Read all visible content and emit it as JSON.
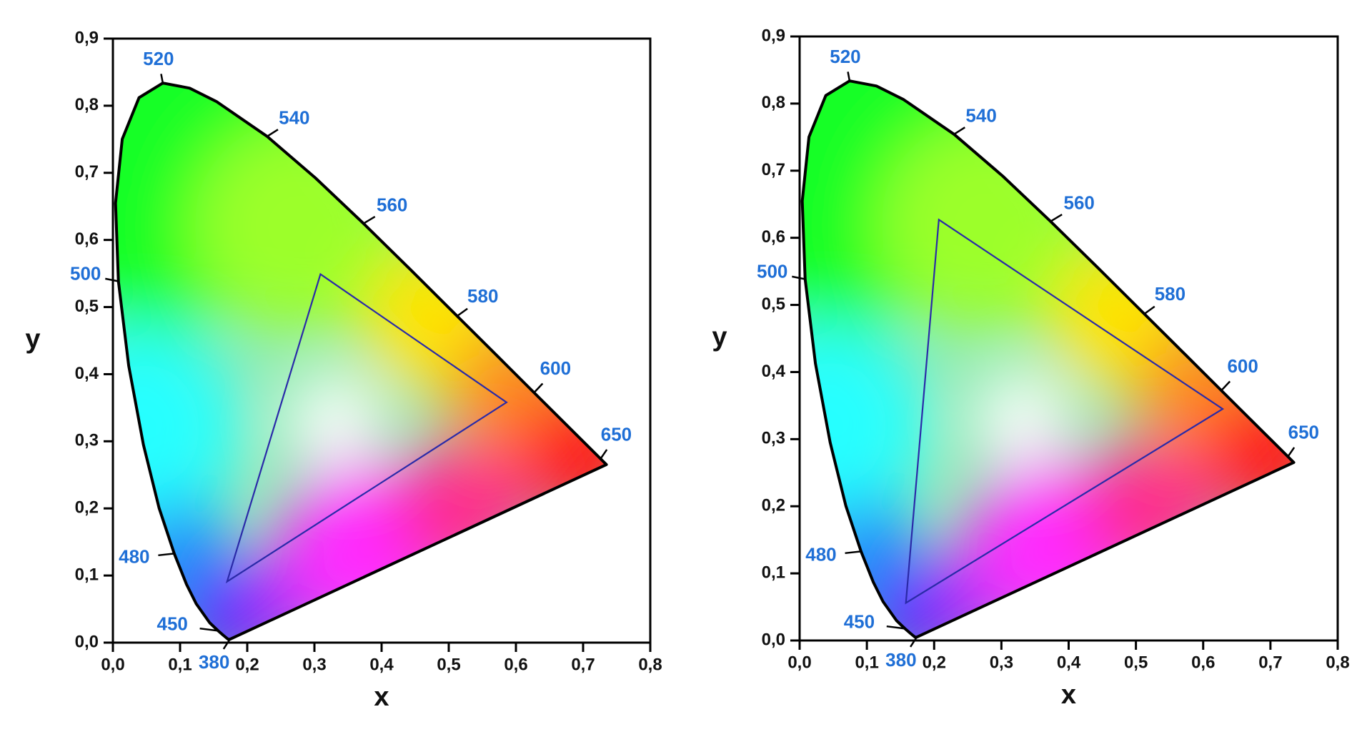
{
  "chart_data": [
    {
      "type": "chromaticity",
      "x_label": "x",
      "y_label": "y",
      "xlim": [
        0,
        0.8
      ],
      "ylim": [
        0,
        0.9
      ],
      "xticks": [
        {
          "value": 0,
          "label": "0,0"
        },
        {
          "value": 0.1,
          "label": "0,1"
        },
        {
          "value": 0.2,
          "label": "0,2"
        },
        {
          "value": 0.3,
          "label": "0,3"
        },
        {
          "value": 0.4,
          "label": "0,4"
        },
        {
          "value": 0.5,
          "label": "0,5"
        },
        {
          "value": 0.6,
          "label": "0,6"
        },
        {
          "value": 0.7,
          "label": "0,7"
        },
        {
          "value": 0.8,
          "label": "0,8"
        }
      ],
      "yticks": [
        {
          "value": 0,
          "label": "0,0"
        },
        {
          "value": 0.1,
          "label": "0,1"
        },
        {
          "value": 0.2,
          "label": "0,2"
        },
        {
          "value": 0.3,
          "label": "0,3"
        },
        {
          "value": 0.4,
          "label": "0,4"
        },
        {
          "value": 0.5,
          "label": "0,5"
        },
        {
          "value": 0.6,
          "label": "0,6"
        },
        {
          "value": 0.7,
          "label": "0,7"
        },
        {
          "value": 0.8,
          "label": "0,8"
        },
        {
          "value": 0.9,
          "label": "0,9"
        }
      ],
      "locus": {
        "color": "#000000",
        "x": [
          0.1741,
          0.1714,
          0.1644,
          0.1566,
          0.144,
          0.1241,
          0.1096,
          0.0913,
          0.0687,
          0.0454,
          0.0235,
          0.0082,
          0.0039,
          0.0139,
          0.0389,
          0.0743,
          0.1142,
          0.1547,
          0.2296,
          0.3016,
          0.3731,
          0.4441,
          0.5125,
          0.5752,
          0.627,
          0.6915,
          0.726,
          0.7347
        ],
        "y": [
          0.005,
          0.0051,
          0.0109,
          0.0177,
          0.0297,
          0.0578,
          0.0868,
          0.1327,
          0.2007,
          0.295,
          0.4127,
          0.5384,
          0.6548,
          0.7502,
          0.812,
          0.8338,
          0.8262,
          0.8059,
          0.7543,
          0.6923,
          0.6245,
          0.5547,
          0.4866,
          0.4242,
          0.3725,
          0.3083,
          0.274,
          0.2653
        ]
      },
      "wavelength_labels": {
        "color": "#1f6fd6",
        "labels": [
          380,
          450,
          480,
          500,
          520,
          540,
          560,
          580,
          600,
          650
        ],
        "x": [
          0.1741,
          0.1566,
          0.0913,
          0.0082,
          0.0743,
          0.2296,
          0.3731,
          0.5125,
          0.627,
          0.726
        ],
        "y": [
          0.005,
          0.0177,
          0.1327,
          0.5384,
          0.8338,
          0.7543,
          0.6245,
          0.4866,
          0.3725,
          0.274
        ]
      },
      "gamut": {
        "color": "#2a2aa8",
        "x": [
          0.309,
          0.586,
          0.17
        ],
        "y": [
          0.549,
          0.358,
          0.091
        ]
      }
    },
    {
      "type": "chromaticity",
      "x_label": "x",
      "y_label": "y",
      "xlim": [
        0,
        0.8
      ],
      "ylim": [
        0,
        0.9
      ],
      "xticks": [
        {
          "value": 0,
          "label": "0,0"
        },
        {
          "value": 0.1,
          "label": "0,1"
        },
        {
          "value": 0.2,
          "label": "0,2"
        },
        {
          "value": 0.3,
          "label": "0,3"
        },
        {
          "value": 0.4,
          "label": "0,4"
        },
        {
          "value": 0.5,
          "label": "0,5"
        },
        {
          "value": 0.6,
          "label": "0,6"
        },
        {
          "value": 0.7,
          "label": "0,7"
        },
        {
          "value": 0.8,
          "label": "0,8"
        }
      ],
      "yticks": [
        {
          "value": 0,
          "label": "0,0"
        },
        {
          "value": 0.1,
          "label": "0,1"
        },
        {
          "value": 0.2,
          "label": "0,2"
        },
        {
          "value": 0.3,
          "label": "0,3"
        },
        {
          "value": 0.4,
          "label": "0,4"
        },
        {
          "value": 0.5,
          "label": "0,5"
        },
        {
          "value": 0.6,
          "label": "0,6"
        },
        {
          "value": 0.7,
          "label": "0,7"
        },
        {
          "value": 0.8,
          "label": "0,8"
        },
        {
          "value": 0.9,
          "label": "0,9"
        }
      ],
      "locus": {
        "color": "#000000",
        "x": [
          0.1741,
          0.1714,
          0.1644,
          0.1566,
          0.144,
          0.1241,
          0.1096,
          0.0913,
          0.0687,
          0.0454,
          0.0235,
          0.0082,
          0.0039,
          0.0139,
          0.0389,
          0.0743,
          0.1142,
          0.1547,
          0.2296,
          0.3016,
          0.3731,
          0.4441,
          0.5125,
          0.5752,
          0.627,
          0.6915,
          0.726,
          0.7347
        ],
        "y": [
          0.005,
          0.0051,
          0.0109,
          0.0177,
          0.0297,
          0.0578,
          0.0868,
          0.1327,
          0.2007,
          0.295,
          0.4127,
          0.5384,
          0.6548,
          0.7502,
          0.812,
          0.8338,
          0.8262,
          0.8059,
          0.7543,
          0.6923,
          0.6245,
          0.5547,
          0.4866,
          0.4242,
          0.3725,
          0.3083,
          0.274,
          0.2653
        ]
      },
      "wavelength_labels": {
        "color": "#1f6fd6",
        "labels": [
          380,
          450,
          480,
          500,
          520,
          540,
          560,
          580,
          600,
          650
        ],
        "x": [
          0.1741,
          0.1566,
          0.0913,
          0.0082,
          0.0743,
          0.2296,
          0.3731,
          0.5125,
          0.627,
          0.726
        ],
        "y": [
          0.005,
          0.0177,
          0.1327,
          0.5384,
          0.8338,
          0.7543,
          0.6245,
          0.4866,
          0.3725,
          0.274
        ]
      },
      "gamut": {
        "color": "#2a2aa8",
        "x": [
          0.207,
          0.629,
          0.158
        ],
        "y": [
          0.627,
          0.345,
          0.056
        ]
      }
    }
  ]
}
